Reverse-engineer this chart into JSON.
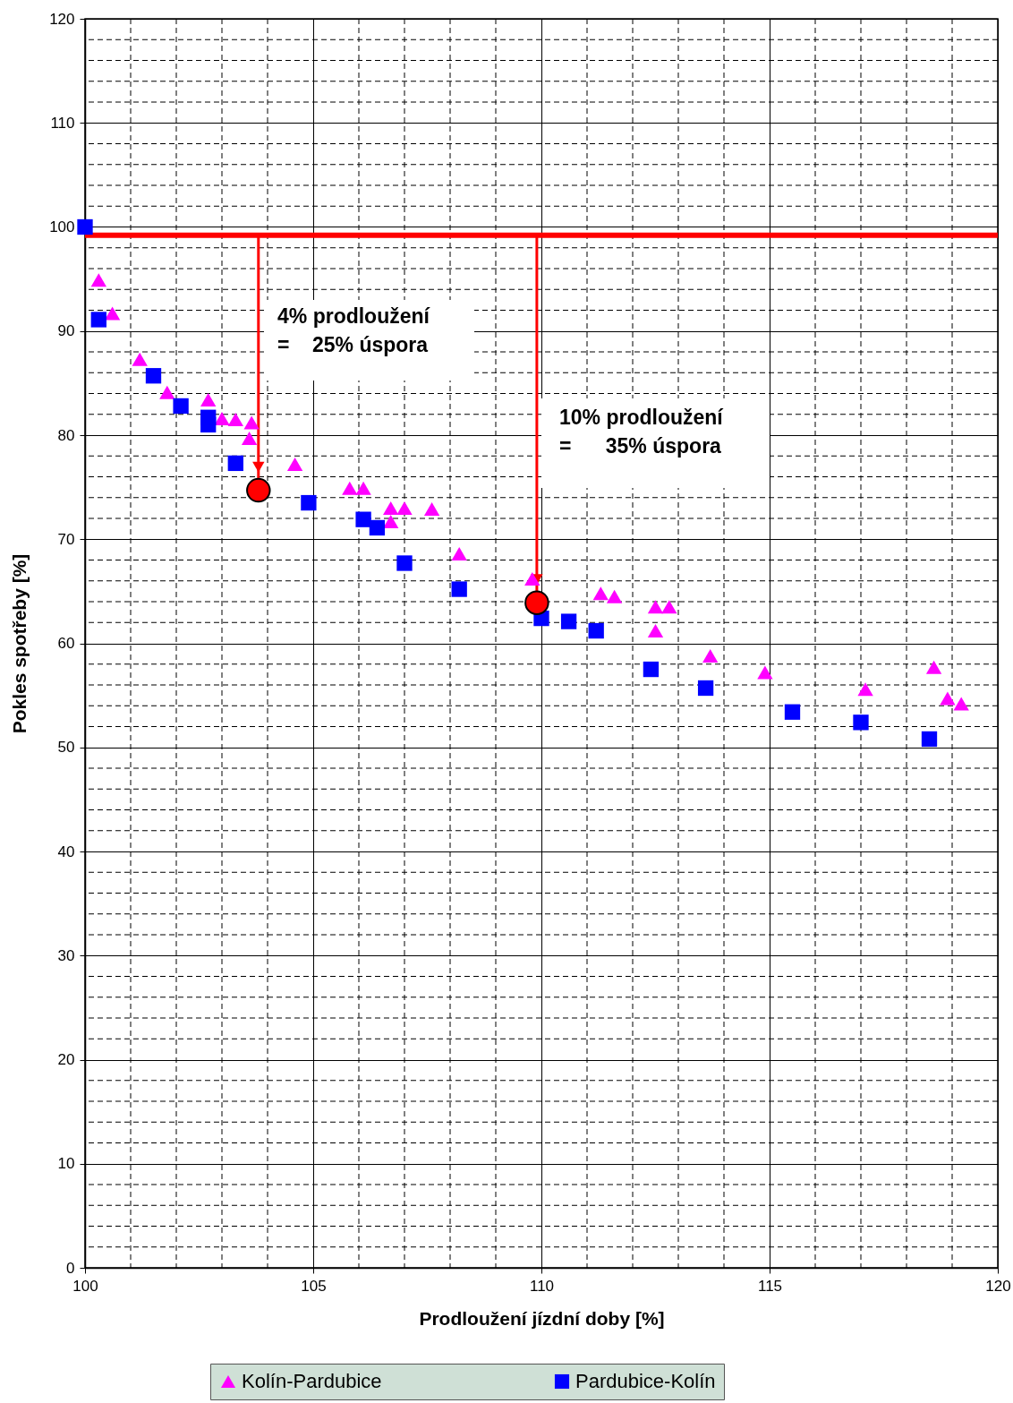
{
  "chart_data": {
    "type": "scatter",
    "xlabel": "Prodloužení jízdní doby [%]",
    "ylabel": "Pokles spotřeby [%]",
    "xlim": [
      100,
      120
    ],
    "ylim": [
      0,
      120
    ],
    "xticks": [
      100,
      {
        "value": 101,
        "label": null
      },
      {
        "value": 102,
        "label": null
      },
      {
        "value": 103,
        "label": null
      },
      {
        "value": 104,
        "label": null
      },
      105,
      {
        "value": 106,
        "label": null
      },
      {
        "value": 107,
        "label": null
      },
      {
        "value": 108,
        "label": null
      },
      {
        "value": 109,
        "label": null
      },
      110,
      {
        "value": 111,
        "label": null
      },
      {
        "value": 112,
        "label": null
      },
      {
        "value": 113,
        "label": null
      },
      {
        "value": 114,
        "label": null
      },
      115,
      {
        "value": 116,
        "label": null
      },
      {
        "value": 117,
        "label": null
      },
      {
        "value": 118,
        "label": null
      },
      {
        "value": 119,
        "label": null
      },
      120
    ],
    "yticks": [
      0,
      {
        "value": 2,
        "label": null
      },
      {
        "value": 4,
        "label": null
      },
      {
        "value": 6,
        "label": null
      },
      {
        "value": 8,
        "label": null
      },
      10,
      {
        "value": 12,
        "label": null
      },
      {
        "value": 14,
        "label": null
      },
      {
        "value": 16,
        "label": null
      },
      {
        "value": 18,
        "label": null
      },
      20,
      {
        "value": 22,
        "label": null
      },
      {
        "value": 24,
        "label": null
      },
      {
        "value": 26,
        "label": null
      },
      {
        "value": 28,
        "label": null
      },
      30,
      {
        "value": 32,
        "label": null
      },
      {
        "value": 34,
        "label": null
      },
      {
        "value": 36,
        "label": null
      },
      {
        "value": 38,
        "label": null
      },
      40,
      {
        "value": 42,
        "label": null
      },
      {
        "value": 44,
        "label": null
      },
      {
        "value": 46,
        "label": null
      },
      {
        "value": 48,
        "label": null
      },
      50,
      {
        "value": 52,
        "label": null
      },
      {
        "value": 54,
        "label": null
      },
      {
        "value": 56,
        "label": null
      },
      {
        "value": 58,
        "label": null
      },
      60,
      {
        "value": 62,
        "label": null
      },
      {
        "value": 64,
        "label": null
      },
      {
        "value": 66,
        "label": null
      },
      {
        "value": 68,
        "label": null
      },
      70,
      {
        "value": 72,
        "label": null
      },
      {
        "value": 74,
        "label": null
      },
      {
        "value": 76,
        "label": null
      },
      {
        "value": 78,
        "label": null
      },
      80,
      {
        "value": 82,
        "label": null
      },
      {
        "value": 84,
        "label": null
      },
      {
        "value": 86,
        "label": null
      },
      {
        "value": 88,
        "label": null
      },
      90,
      {
        "value": 92,
        "label": null
      },
      {
        "value": 94,
        "label": null
      },
      {
        "value": 96,
        "label": null
      },
      {
        "value": 98,
        "label": null
      },
      100,
      {
        "value": 102,
        "label": null
      },
      {
        "value": 104,
        "label": null
      },
      {
        "value": 106,
        "label": null
      },
      {
        "value": 108,
        "label": null
      },
      110,
      {
        "value": 112,
        "label": null
      },
      {
        "value": 114,
        "label": null
      },
      {
        "value": 116,
        "label": null
      },
      {
        "value": 118,
        "label": null
      },
      120
    ],
    "grid": true,
    "legend": "bottom",
    "series": [
      {
        "name": "Kolín-Pardubice",
        "color": "#ff00ff",
        "marker": "triangle",
        "x": [
          100.3,
          100.6,
          101.2,
          101.8,
          102.7,
          103.0,
          103.3,
          103.65,
          103.6,
          104.6,
          105.8,
          106.1,
          106.7,
          107.0,
          106.7,
          107.6,
          108.2,
          109.8,
          111.3,
          111.6,
          112.5,
          112.8,
          112.5,
          113.7,
          114.9,
          117.1,
          118.6,
          118.9,
          119.2
        ],
        "values": [
          94.9,
          91.7,
          87.3,
          84.1,
          83.4,
          81.6,
          81.5,
          81.2,
          79.7,
          77.2,
          74.9,
          74.9,
          73.0,
          73.0,
          71.7,
          72.9,
          68.6,
          66.2,
          64.8,
          64.5,
          63.5,
          63.5,
          61.2,
          58.8,
          57.2,
          55.6,
          57.7,
          54.7,
          54.2
        ]
      },
      {
        "name": "Pardubice-Kolín",
        "color": "#0000ff",
        "marker": "square",
        "x": [
          100.0,
          100.3,
          101.5,
          102.1,
          102.7,
          102.7,
          103.3,
          104.9,
          106.1,
          106.4,
          107.0,
          108.2,
          110.0,
          110.6,
          111.2,
          112.4,
          113.6,
          115.5,
          117.0,
          118.5
        ],
        "values": [
          100.0,
          91.1,
          85.7,
          82.8,
          81.7,
          81.0,
          77.3,
          73.5,
          71.9,
          71.1,
          67.7,
          65.2,
          62.4,
          62.1,
          61.2,
          57.5,
          55.7,
          53.4,
          52.4,
          50.8
        ]
      },
      {
        "color": "#ff0000",
        "marker": "circle",
        "x": [
          103.8,
          109.9
        ],
        "values": [
          74.7,
          63.9
        ]
      }
    ],
    "ref_lines": [
      {
        "axis": "y",
        "value": 99.2,
        "color": "#ff0000"
      }
    ],
    "annotations": [
      "4% prodloužení\n=    25% úspora",
      "10% prodloužení\n=      35% úspora"
    ]
  }
}
